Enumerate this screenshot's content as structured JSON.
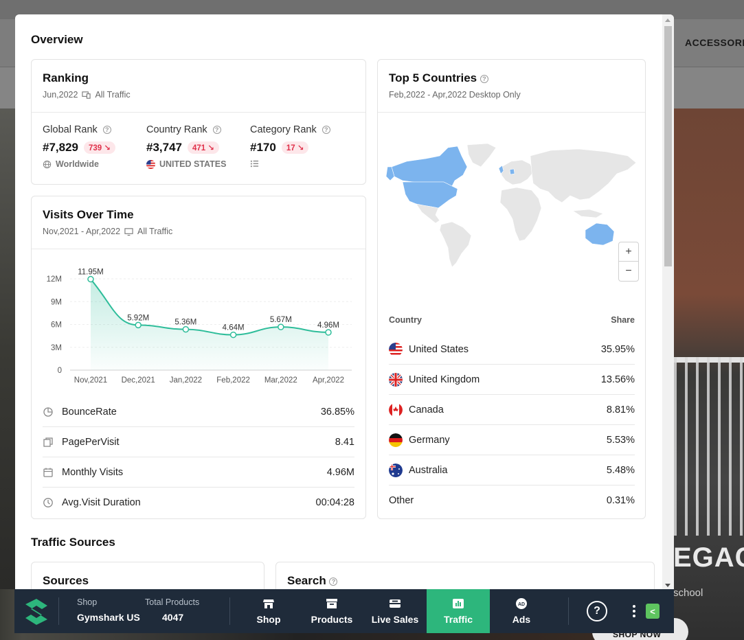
{
  "background": {
    "nav_label": "ACCESSORI",
    "hero_title": "EGAC",
    "hero_subtitle": "school",
    "shop_button": "SHOP NOW"
  },
  "overview": {
    "title": "Overview",
    "ranking": {
      "title": "Ranking",
      "period": "Jun,2022",
      "traffic": "All Traffic",
      "global": {
        "label": "Global Rank",
        "value": "#7,829",
        "change": "739 ↘",
        "foot": "Worldwide"
      },
      "country": {
        "label": "Country Rank",
        "value": "#3,747",
        "change": "471 ↘",
        "foot": "UNITED STATES"
      },
      "category": {
        "label": "Category Rank",
        "value": "#170",
        "change": "17 ↘"
      }
    },
    "visits": {
      "title": "Visits Over Time",
      "period": "Nov,2021 - Apr,2022",
      "traffic": "All Traffic",
      "metrics": [
        {
          "label": "BounceRate",
          "value": "36.85%"
        },
        {
          "label": "PagePerVisit",
          "value": "8.41"
        },
        {
          "label": "Monthly Visits",
          "value": "4.96M"
        },
        {
          "label": "Avg.Visit Duration",
          "value": "00:04:28"
        }
      ]
    },
    "countries": {
      "title": "Top 5 Countries",
      "period": "Feb,2022 - Apr,2022 Desktop Only",
      "zoom_in": "+",
      "zoom_out": "−",
      "col_country": "Country",
      "col_share": "Share",
      "rows": [
        {
          "name": "United States",
          "share": "35.95%",
          "flag": "us-flag"
        },
        {
          "name": "United Kingdom",
          "share": "13.56%",
          "flag": "uk-flag"
        },
        {
          "name": "Canada",
          "share": "8.81%",
          "flag": "ca-flag"
        },
        {
          "name": "Germany",
          "share": "5.53%",
          "flag": "de-flag"
        },
        {
          "name": "Australia",
          "share": "5.48%",
          "flag": "au-flag"
        },
        {
          "name": "Other",
          "share": "0.31%",
          "flag": ""
        }
      ]
    }
  },
  "traffic_sources": {
    "title": "Traffic Sources",
    "sources_title": "Sources",
    "search_title": "Search"
  },
  "toolbar": {
    "shop_label": "Shop",
    "shop_value": "Gymshark US",
    "products_label": "Total Products",
    "products_value": "4047",
    "tabs": [
      {
        "label": "Shop",
        "icon": "store-icon"
      },
      {
        "label": "Products",
        "icon": "box-icon"
      },
      {
        "label": "Live Sales",
        "icon": "sales-icon"
      },
      {
        "label": "Traffic",
        "icon": "traffic-icon",
        "active": true
      },
      {
        "label": "Ads",
        "icon": "ad-icon"
      }
    ],
    "help": "?",
    "collapse": "<"
  },
  "colors": {
    "accent": "#2db67c",
    "line": "#2ebd9a",
    "badge_text": "#e0304a",
    "map_highlight": "#7cb4ee",
    "toolbar_bg": "#1f2b3a"
  },
  "chart_data": {
    "type": "area",
    "categories": [
      "Nov,2021",
      "Dec,2021",
      "Jan,2022",
      "Feb,2022",
      "Mar,2022",
      "Apr,2022"
    ],
    "values": [
      11.95,
      5.92,
      5.36,
      4.64,
      5.67,
      4.96
    ],
    "value_labels": [
      "11.95M",
      "5.92M",
      "5.36M",
      "4.64M",
      "5.67M",
      "4.96M"
    ],
    "yticks": [
      "0",
      "3M",
      "6M",
      "9M",
      "12M"
    ],
    "ytick_values": [
      0,
      3,
      6,
      9,
      12
    ],
    "ylim": [
      0,
      12
    ],
    "grid": true
  }
}
